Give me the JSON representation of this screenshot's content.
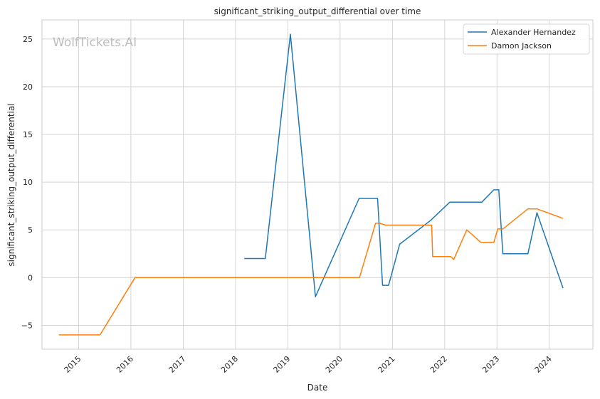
{
  "chart_data": {
    "type": "line",
    "title": "significant_striking_output_differential over time",
    "xlabel": "Date",
    "ylabel": "significant_striking_output_differential",
    "watermark": "WolfTickets.AI",
    "grid": true,
    "legend_position": "top-right",
    "xlim": [
      "2014-04-20",
      "2024-11-01"
    ],
    "ylim": [
      -7.5,
      27
    ],
    "x_ticks": [
      "2015-01-01",
      "2016-01-01",
      "2017-01-01",
      "2018-01-01",
      "2019-01-01",
      "2020-01-01",
      "2021-01-01",
      "2022-01-01",
      "2023-01-01",
      "2024-01-01"
    ],
    "x_tick_labels": [
      "2015",
      "2016",
      "2017",
      "2018",
      "2019",
      "2020",
      "2021",
      "2022",
      "2023",
      "2024"
    ],
    "y_ticks": [
      -5,
      0,
      5,
      10,
      15,
      20,
      25
    ],
    "y_tick_labels": [
      "−5",
      "0",
      "5",
      "10",
      "15",
      "20",
      "25"
    ],
    "series": [
      {
        "name": "Alexander Hernandez",
        "color": "#1f77b4",
        "points": [
          [
            "2018-03-03",
            2.0
          ],
          [
            "2018-07-28",
            2.0
          ],
          [
            "2019-01-19",
            25.5
          ],
          [
            "2019-07-13",
            -2.0
          ],
          [
            "2020-05-13",
            8.3
          ],
          [
            "2020-09-19",
            8.3
          ],
          [
            "2020-10-24",
            -0.8
          ],
          [
            "2020-12-05",
            -0.8
          ],
          [
            "2021-02-20",
            3.5
          ],
          [
            "2021-09-25",
            6.0
          ],
          [
            "2021-10-16",
            6.3
          ],
          [
            "2022-02-05",
            7.9
          ],
          [
            "2022-09-17",
            7.9
          ],
          [
            "2022-12-10",
            9.2
          ],
          [
            "2023-01-14",
            9.2
          ],
          [
            "2023-02-11",
            2.5
          ],
          [
            "2023-08-05",
            2.5
          ],
          [
            "2023-10-07",
            6.8
          ],
          [
            "2024-04-06",
            -1.1
          ]
        ]
      },
      {
        "name": "Damon Jackson",
        "color": "#ff7f0e",
        "points": [
          [
            "2014-08-16",
            -6.0
          ],
          [
            "2015-05-30",
            -6.0
          ],
          [
            "2016-01-30",
            0.0
          ],
          [
            "2020-05-16",
            0.0
          ],
          [
            "2020-09-05",
            5.7
          ],
          [
            "2020-10-03",
            5.7
          ],
          [
            "2020-11-14",
            5.5
          ],
          [
            "2021-10-02",
            5.5
          ],
          [
            "2021-10-09",
            2.2
          ],
          [
            "2022-02-12",
            2.2
          ],
          [
            "2022-03-05",
            1.9
          ],
          [
            "2022-06-04",
            5.0
          ],
          [
            "2022-09-10",
            3.7
          ],
          [
            "2022-12-10",
            3.7
          ],
          [
            "2023-01-07",
            5.1
          ],
          [
            "2023-02-11",
            5.1
          ],
          [
            "2023-08-05",
            7.2
          ],
          [
            "2023-10-07",
            7.2
          ],
          [
            "2024-04-06",
            6.2
          ]
        ]
      }
    ]
  }
}
